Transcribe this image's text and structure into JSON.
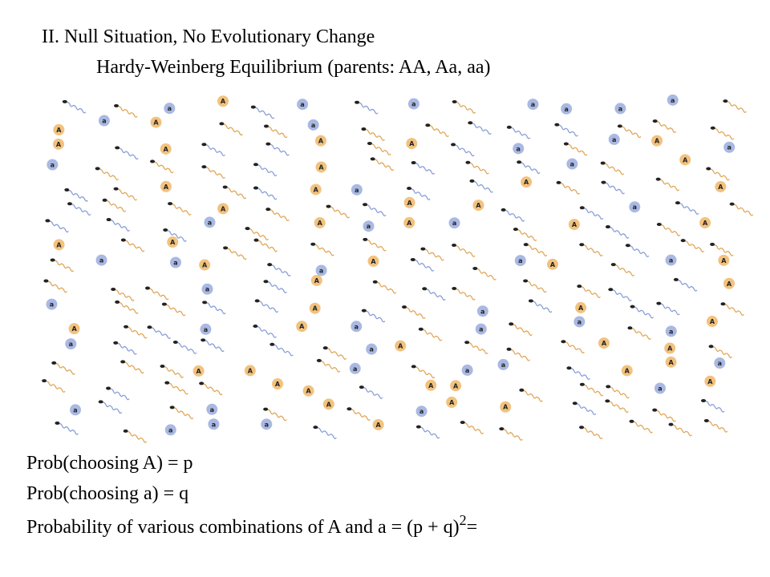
{
  "header": {
    "title": "II. Null Situation, No Evolutionary Change",
    "subtitle": "Hardy-Weinberg Equilibrium (parents: AA, Aa, aa)"
  },
  "illustration": {
    "alleles": [
      "A",
      "a"
    ]
  },
  "body": {
    "lines": [
      "Prob(choosing A) = p",
      "Prob(choosing a) = q"
    ],
    "formula": {
      "text": "Probability of various combinations of A and a = (p + q)",
      "superscript": "2",
      "suffix": "="
    }
  }
}
